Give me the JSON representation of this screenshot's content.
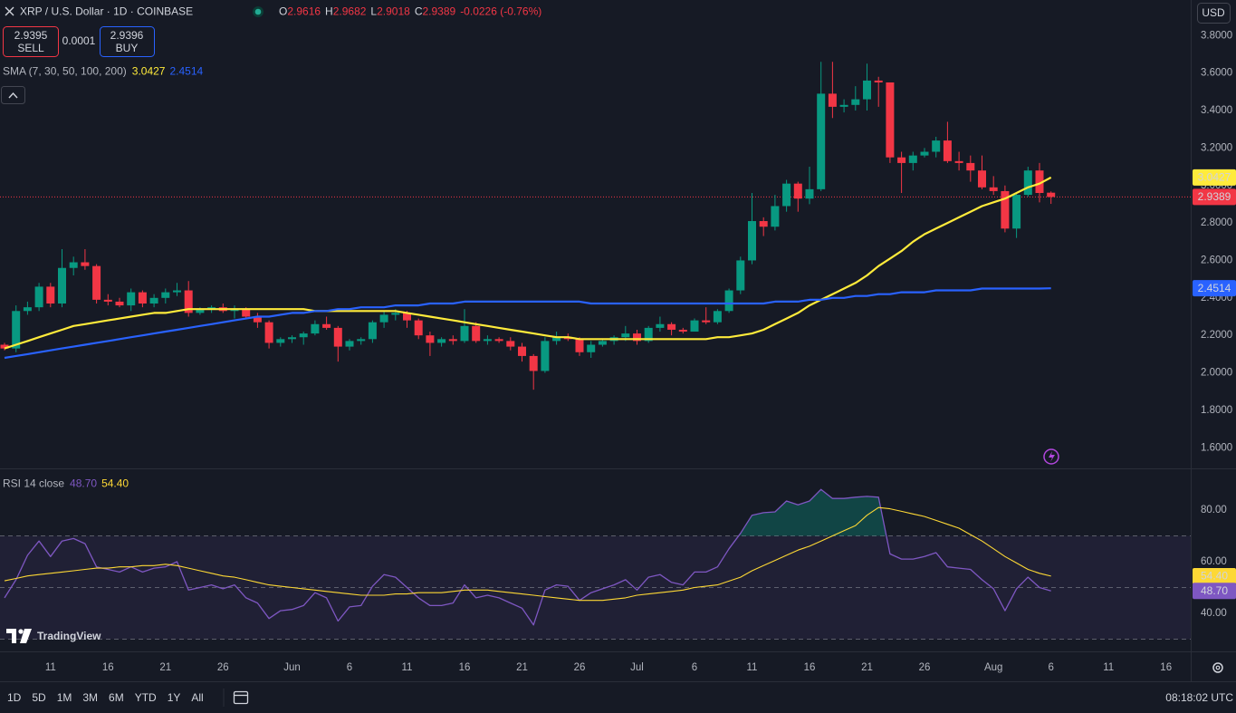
{
  "header": {
    "symbol": "XRP / U.S. Dollar · 1D · COINBASE",
    "ohlc_letters": [
      "O",
      "H",
      "L",
      "C"
    ],
    "change": "-0.0226 (-0.76%)"
  },
  "trade": {
    "sell_price": "2.9395",
    "sell": "SELL",
    "spread": "0.0001",
    "buy_price": "2.9396",
    "buy": "BUY"
  },
  "currency": "USD",
  "logo": "TradingView",
  "timeframes": [
    "1D",
    "5D",
    "1M",
    "3M",
    "6M",
    "YTD",
    "1Y",
    "All"
  ],
  "clock": "08:18:02 UTC",
  "chart_data": [
    {
      "type": "candlestick",
      "indicator": "SMA (7, 30, 50, 100, 200)",
      "up_color": "#089981",
      "down_color": "#f23645",
      "last_price_color": "#f23645",
      "x": [
        "05-07",
        "05-08",
        "05-09",
        "05-10",
        "05-11",
        "05-12",
        "05-13",
        "05-14",
        "05-15",
        "05-16",
        "05-17",
        "05-18",
        "05-19",
        "05-20",
        "05-21",
        "05-22",
        "05-23",
        "05-24",
        "05-25",
        "05-26",
        "05-27",
        "05-28",
        "05-29",
        "05-30",
        "05-31",
        "06-01",
        "06-02",
        "06-03",
        "06-04",
        "06-05",
        "06-06",
        "06-07",
        "06-08",
        "06-09",
        "06-10",
        "06-11",
        "06-12",
        "06-13",
        "06-14",
        "06-15",
        "06-16",
        "06-17",
        "06-18",
        "06-19",
        "06-20",
        "06-21",
        "06-22",
        "06-23",
        "06-24",
        "06-25",
        "06-26",
        "06-27",
        "06-28",
        "06-29",
        "06-30",
        "07-01",
        "07-02",
        "07-03",
        "07-04",
        "07-05",
        "07-06",
        "07-07",
        "07-08",
        "07-09",
        "07-10",
        "07-11",
        "07-12",
        "07-13",
        "07-14",
        "07-15",
        "07-16",
        "07-17",
        "07-18",
        "07-19",
        "07-20",
        "07-21",
        "07-22",
        "07-23",
        "07-24",
        "07-25",
        "07-26",
        "07-27",
        "07-28",
        "07-29",
        "07-30",
        "07-31",
        "08-01",
        "08-02",
        "08-03",
        "08-04",
        "08-05",
        "08-06"
      ],
      "open": [
        2.15,
        2.13,
        2.33,
        2.35,
        2.46,
        2.37,
        2.56,
        2.59,
        2.57,
        2.39,
        2.38,
        2.36,
        2.43,
        2.37,
        2.4,
        2.43,
        2.44,
        2.32,
        2.34,
        2.35,
        2.33,
        2.34,
        2.3,
        2.27,
        2.16,
        2.18,
        2.19,
        2.21,
        2.26,
        2.24,
        2.14,
        2.17,
        2.18,
        2.27,
        2.31,
        2.32,
        2.28,
        2.2,
        2.16,
        2.18,
        2.17,
        2.25,
        2.17,
        2.18,
        2.17,
        2.14,
        2.09,
        2.01,
        2.17,
        2.19,
        2.18,
        2.11,
        2.15,
        2.17,
        2.19,
        2.21,
        2.17,
        2.24,
        2.26,
        2.23,
        2.22,
        2.28,
        2.27,
        2.33,
        2.44,
        2.6,
        2.81,
        2.78,
        2.89,
        3.01,
        2.93,
        2.98,
        3.49,
        3.42,
        3.43,
        3.46,
        3.56,
        3.55,
        3.15,
        3.12,
        3.16,
        3.18,
        3.24,
        3.13,
        3.12,
        3.08,
        2.99,
        2.97,
        2.77,
        2.95,
        3.08,
        2.9616
      ],
      "high": [
        2.16,
        2.36,
        2.38,
        2.48,
        2.48,
        2.66,
        2.62,
        2.66,
        2.58,
        2.42,
        2.4,
        2.45,
        2.44,
        2.42,
        2.45,
        2.48,
        2.49,
        2.35,
        2.36,
        2.37,
        2.36,
        2.35,
        2.32,
        2.28,
        2.19,
        2.2,
        2.22,
        2.28,
        2.3,
        2.25,
        2.18,
        2.19,
        2.28,
        2.33,
        2.34,
        2.33,
        2.29,
        2.22,
        2.19,
        2.2,
        2.34,
        2.27,
        2.2,
        2.19,
        2.19,
        2.16,
        2.1,
        2.19,
        2.22,
        2.21,
        2.19,
        2.17,
        2.18,
        2.2,
        2.25,
        2.23,
        2.25,
        2.3,
        2.27,
        2.24,
        2.29,
        2.35,
        2.34,
        2.45,
        2.62,
        2.96,
        2.83,
        2.95,
        3.03,
        3.02,
        3.1,
        3.66,
        3.66,
        3.46,
        3.53,
        3.65,
        3.58,
        3.55,
        3.18,
        3.18,
        3.2,
        3.26,
        3.34,
        3.18,
        3.16,
        3.16,
        3.05,
        3.0,
        2.96,
        3.1,
        3.12,
        2.9682
      ],
      "low": [
        2.12,
        2.11,
        2.31,
        2.33,
        2.35,
        2.35,
        2.52,
        2.55,
        2.37,
        2.36,
        2.35,
        2.33,
        2.35,
        2.35,
        2.37,
        2.41,
        2.3,
        2.31,
        2.32,
        2.32,
        2.29,
        2.29,
        2.24,
        2.13,
        2.14,
        2.16,
        2.15,
        2.2,
        2.23,
        2.06,
        2.12,
        2.15,
        2.16,
        2.24,
        2.28,
        2.24,
        2.18,
        2.09,
        2.14,
        2.15,
        2.16,
        2.16,
        2.15,
        2.16,
        2.12,
        2.06,
        1.91,
        2.0,
        2.15,
        2.17,
        2.09,
        2.08,
        2.14,
        2.15,
        2.17,
        2.15,
        2.16,
        2.22,
        2.2,
        2.21,
        2.22,
        2.26,
        2.26,
        2.32,
        2.42,
        2.58,
        2.73,
        2.76,
        2.86,
        2.86,
        2.9,
        2.97,
        3.36,
        3.39,
        3.4,
        3.4,
        3.42,
        3.12,
        2.96,
        3.08,
        3.15,
        3.15,
        3.12,
        3.08,
        3.02,
        2.98,
        2.95,
        2.75,
        2.72,
        2.94,
        2.91,
        2.9018
      ],
      "close": [
        2.13,
        2.33,
        2.35,
        2.46,
        2.37,
        2.56,
        2.59,
        2.57,
        2.39,
        2.38,
        2.36,
        2.43,
        2.37,
        2.4,
        2.43,
        2.44,
        2.32,
        2.34,
        2.35,
        2.33,
        2.34,
        2.3,
        2.27,
        2.16,
        2.18,
        2.19,
        2.21,
        2.26,
        2.24,
        2.14,
        2.17,
        2.18,
        2.27,
        2.31,
        2.32,
        2.28,
        2.2,
        2.16,
        2.18,
        2.17,
        2.25,
        2.17,
        2.18,
        2.17,
        2.14,
        2.09,
        2.01,
        2.17,
        2.19,
        2.18,
        2.11,
        2.15,
        2.17,
        2.19,
        2.21,
        2.17,
        2.24,
        2.26,
        2.23,
        2.22,
        2.28,
        2.27,
        2.33,
        2.44,
        2.6,
        2.81,
        2.78,
        2.89,
        3.01,
        2.93,
        2.98,
        3.49,
        3.42,
        3.43,
        3.46,
        3.56,
        3.55,
        3.15,
        3.12,
        3.16,
        3.18,
        3.24,
        3.13,
        3.12,
        3.08,
        2.99,
        2.97,
        2.77,
        2.95,
        3.08,
        2.96,
        2.9389
      ],
      "series": [
        {
          "color": "#ffeb3b",
          "values": [
            2.13,
            2.15,
            2.17,
            2.19,
            2.21,
            2.23,
            2.25,
            2.26,
            2.27,
            2.28,
            2.29,
            2.3,
            2.31,
            2.32,
            2.32,
            2.33,
            2.34,
            2.34,
            2.34,
            2.34,
            2.34,
            2.34,
            2.34,
            2.34,
            2.34,
            2.34,
            2.34,
            2.33,
            2.33,
            2.33,
            2.33,
            2.33,
            2.33,
            2.33,
            2.33,
            2.32,
            2.31,
            2.3,
            2.29,
            2.28,
            2.27,
            2.26,
            2.25,
            2.24,
            2.23,
            2.22,
            2.21,
            2.2,
            2.19,
            2.19,
            2.18,
            2.18,
            2.18,
            2.18,
            2.18,
            2.18,
            2.18,
            2.18,
            2.18,
            2.18,
            2.18,
            2.18,
            2.19,
            2.19,
            2.2,
            2.21,
            2.23,
            2.26,
            2.29,
            2.32,
            2.36,
            2.39,
            2.42,
            2.45,
            2.48,
            2.52,
            2.57,
            2.61,
            2.65,
            2.7,
            2.74,
            2.77,
            2.8,
            2.83,
            2.86,
            2.89,
            2.91,
            2.93,
            2.96,
            2.99,
            3.01,
            3.0427
          ]
        },
        {
          "color": "#2962ff",
          "values": [
            2.08,
            2.09,
            2.1,
            2.11,
            2.12,
            2.13,
            2.14,
            2.15,
            2.16,
            2.17,
            2.18,
            2.19,
            2.2,
            2.21,
            2.22,
            2.23,
            2.24,
            2.25,
            2.26,
            2.27,
            2.28,
            2.29,
            2.3,
            2.3,
            2.31,
            2.32,
            2.32,
            2.33,
            2.33,
            2.34,
            2.34,
            2.35,
            2.35,
            2.35,
            2.36,
            2.36,
            2.36,
            2.37,
            2.37,
            2.37,
            2.38,
            2.38,
            2.38,
            2.38,
            2.38,
            2.38,
            2.38,
            2.38,
            2.38,
            2.38,
            2.38,
            2.37,
            2.37,
            2.37,
            2.37,
            2.37,
            2.37,
            2.37,
            2.37,
            2.37,
            2.37,
            2.37,
            2.37,
            2.37,
            2.37,
            2.37,
            2.37,
            2.38,
            2.38,
            2.38,
            2.39,
            2.39,
            2.4,
            2.4,
            2.41,
            2.41,
            2.42,
            2.42,
            2.43,
            2.43,
            2.43,
            2.44,
            2.44,
            2.44,
            2.44,
            2.45,
            2.45,
            2.45,
            2.45,
            2.45,
            2.45,
            2.4514
          ]
        }
      ],
      "ylim": [
        1.49,
        3.99
      ],
      "yticks": [
        {
          "value": 3.8,
          "label": "3.8000"
        },
        {
          "value": 3.6,
          "label": "3.6000"
        },
        {
          "value": 3.4,
          "label": "3.4000"
        },
        {
          "value": 3.2,
          "label": "3.2000"
        },
        {
          "value": 3.0,
          "label": "3.0000"
        },
        {
          "value": 2.8,
          "label": "2.8000"
        },
        {
          "value": 2.6,
          "label": "2.6000"
        },
        {
          "value": 2.4,
          "label": "2.4000"
        },
        {
          "value": 2.2,
          "label": "2.2000"
        },
        {
          "value": 2.0,
          "label": "2.0000"
        },
        {
          "value": 1.8,
          "label": "1.8000"
        },
        {
          "value": 1.6,
          "label": "1.6000"
        }
      ],
      "xticks": [
        {
          "value": "05-11",
          "label": "11"
        },
        {
          "value": "05-16",
          "label": "16"
        },
        {
          "value": "05-21",
          "label": "21"
        },
        {
          "value": "05-26",
          "label": "26"
        },
        {
          "value": "06-01",
          "label": "Jun"
        },
        {
          "value": "06-06",
          "label": "6"
        },
        {
          "value": "06-11",
          "label": "11"
        },
        {
          "value": "06-16",
          "label": "16"
        },
        {
          "value": "06-21",
          "label": "21"
        },
        {
          "value": "06-26",
          "label": "26"
        },
        {
          "value": "07-01",
          "label": "Jul"
        },
        {
          "value": "07-06",
          "label": "6"
        },
        {
          "value": "07-11",
          "label": "11"
        },
        {
          "value": "07-16",
          "label": "16"
        },
        {
          "value": "07-21",
          "label": "21"
        },
        {
          "value": "07-26",
          "label": "26"
        },
        {
          "value": "08-01",
          "label": "Aug"
        },
        {
          "value": "08-06",
          "label": "6"
        },
        {
          "value": "08-11",
          "label": "11"
        },
        {
          "value": "08-16",
          "label": "16"
        }
      ]
    },
    {
      "type": "line",
      "title": "RSI 14 close",
      "series": [
        {
          "color": "#7e57c2",
          "last_label": "48.70",
          "values": [
            46,
            53,
            62.5,
            68,
            62,
            68,
            69,
            67,
            58,
            57,
            56,
            58,
            56,
            57.5,
            58,
            60,
            49,
            50,
            51,
            49.5,
            51,
            46,
            44,
            38,
            41,
            41.5,
            43,
            48,
            46,
            37,
            42.5,
            43,
            50.5,
            55,
            54,
            50,
            46,
            43,
            43,
            44,
            51,
            46,
            47,
            46,
            44,
            42,
            35.5,
            49,
            51,
            50.5,
            45,
            48,
            49.5,
            51,
            53,
            49,
            54,
            55,
            52,
            51,
            56,
            56,
            58,
            65,
            71,
            78,
            79,
            79.3,
            83.5,
            82,
            83.5,
            88,
            84.5,
            84.5,
            85,
            85.3,
            85,
            63,
            61,
            61,
            62,
            63.5,
            58,
            57.5,
            57,
            53,
            49.5,
            41,
            49.5,
            54,
            50,
            48.7
          ]
        },
        {
          "color": "#fdd835",
          "last_label": "54.40",
          "values": [
            52.6,
            53.5,
            54.5,
            55,
            55.5,
            56,
            56.5,
            57,
            57.5,
            57.5,
            58,
            58,
            58.5,
            58.5,
            59,
            58.5,
            57.5,
            56.5,
            55.5,
            54.5,
            54,
            53,
            52,
            51,
            50.5,
            50,
            49.5,
            49,
            48.5,
            48,
            47.5,
            47,
            47,
            47,
            47.5,
            47.5,
            48,
            48,
            48,
            48.5,
            49,
            49,
            49,
            48.5,
            48,
            47.5,
            47,
            46.5,
            46,
            45.5,
            45,
            45,
            45,
            45.5,
            46,
            47,
            47.5,
            48,
            48.5,
            49,
            50,
            50.5,
            51,
            52.5,
            54,
            56.5,
            58.5,
            60.5,
            62.5,
            64.5,
            66,
            68,
            70,
            72,
            74,
            78,
            81,
            80.5,
            79.5,
            78.5,
            77.5,
            76,
            74.5,
            73,
            70.5,
            68,
            65,
            62,
            59.5,
            57,
            55.5,
            54.4
          ]
        }
      ],
      "bands": [
        70,
        50,
        30
      ],
      "band_color": "#7e57c2",
      "overbought_color": "#089981",
      "ylim": [
        25.6,
        95.8
      ],
      "yticks": [
        {
          "value": 80,
          "label": "80.00"
        },
        {
          "value": 60,
          "label": "60.00"
        },
        {
          "value": 40,
          "label": "40.00"
        }
      ]
    }
  ]
}
